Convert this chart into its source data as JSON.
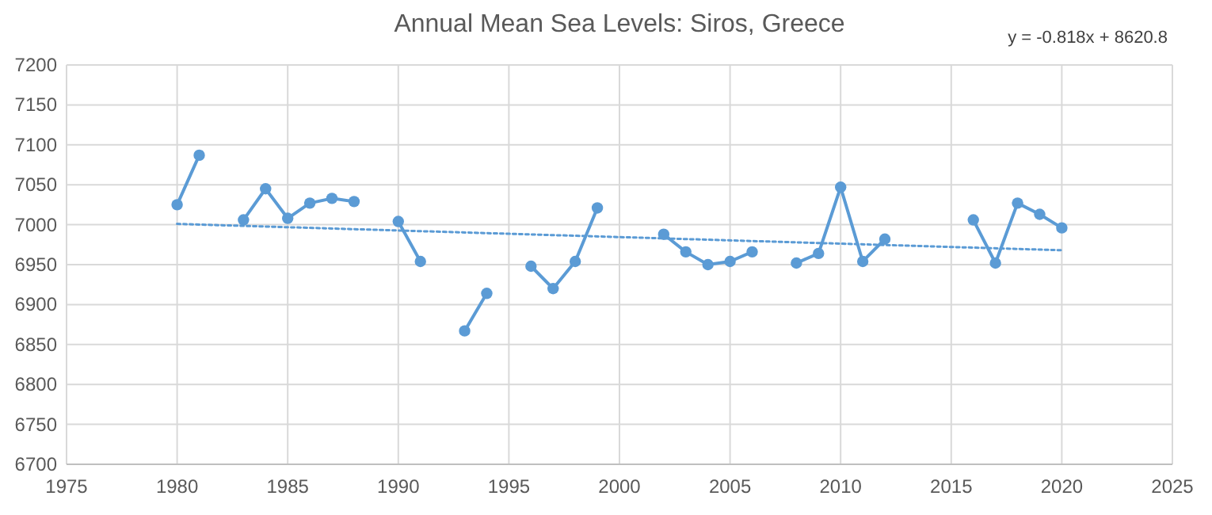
{
  "chart_data": {
    "type": "line",
    "title": "Annual Mean Sea Levels: Siros, Greece",
    "annotations": [
      "y = -0.818x + 8620.8"
    ],
    "x": [
      1980,
      1981,
      1982,
      1983,
      1984,
      1985,
      1986,
      1987,
      1988,
      1989,
      1990,
      1991,
      1992,
      1993,
      1994,
      1995,
      1996,
      1997,
      1998,
      1999,
      2000,
      2001,
      2002,
      2003,
      2004,
      2005,
      2006,
      2007,
      2008,
      2009,
      2010,
      2011,
      2012,
      2013,
      2014,
      2015,
      2016,
      2017,
      2018,
      2019,
      2020
    ],
    "series": [
      {
        "color": "#5b9bd5",
        "marker": "circle",
        "line_style": "solid",
        "values": [
          7025,
          7087,
          null,
          7006,
          7045,
          7008,
          7027,
          7033,
          7029,
          null,
          7004,
          6954,
          null,
          6867,
          6914,
          null,
          6948,
          6920,
          6954,
          7021,
          null,
          null,
          6988,
          6966,
          6950,
          6954,
          6966,
          null,
          6952,
          6964,
          7047,
          6954,
          6982,
          null,
          null,
          null,
          7006,
          6952,
          7027,
          7013,
          6996
        ]
      },
      {
        "type": "line",
        "color": "#5b9bd5",
        "marker": "none",
        "line_style": "dotted",
        "x": [
          1980,
          2020
        ],
        "values": [
          7001,
          6968
        ]
      }
    ],
    "xlim": [
      1975,
      2025
    ],
    "xticks": [
      1975,
      1980,
      1985,
      1990,
      1995,
      2000,
      2005,
      2010,
      2015,
      2020,
      2025
    ],
    "ylim": [
      6700,
      7200
    ],
    "yticks": [
      6700,
      6750,
      6800,
      6850,
      6900,
      6950,
      7000,
      7050,
      7100,
      7150,
      7200
    ],
    "grid": true
  }
}
